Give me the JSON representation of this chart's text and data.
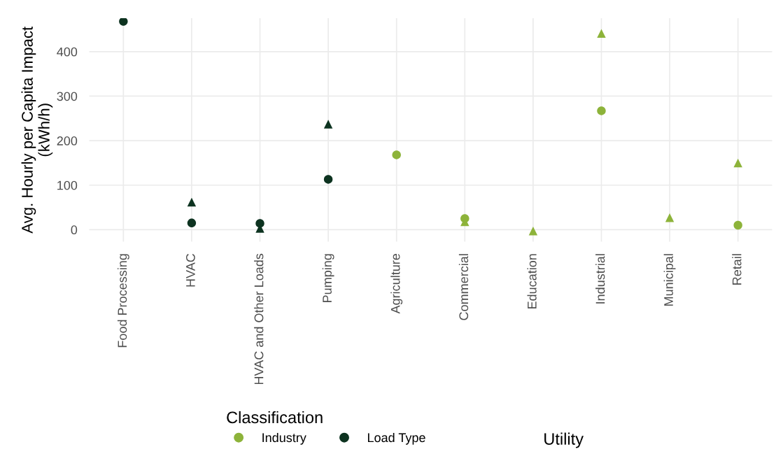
{
  "chart_data": {
    "type": "scatter",
    "ylabel": "Avg. Hourly per Capita Impact\n(kWh/h)",
    "categories": [
      "Food Processing",
      "HVAC",
      "HVAC and Other Loads",
      "Pumping",
      "Agriculture",
      "Commercial",
      "Education",
      "Industrial",
      "Municipal",
      "Retail"
    ],
    "series": [
      {
        "name": "Industry",
        "color": "#8db33a",
        "marker": "circle",
        "values": [
          null,
          null,
          null,
          null,
          168,
          25,
          null,
          267,
          null,
          10
        ]
      },
      {
        "name": "Load Type",
        "color": "#0d3320",
        "marker": "circle",
        "values": [
          468,
          15,
          14,
          113,
          null,
          null,
          null,
          null,
          null,
          null
        ]
      },
      {
        "color": "#8db33a",
        "marker": "triangle",
        "values": [
          null,
          null,
          null,
          null,
          null,
          18,
          -3,
          441,
          27,
          150
        ]
      },
      {
        "color": "#0d3320",
        "marker": "triangle",
        "values": [
          null,
          62,
          3,
          237,
          null,
          null,
          null,
          null,
          null,
          null
        ]
      }
    ],
    "ylim": [
      -27,
      475
    ],
    "yticks": [
      0,
      100,
      200,
      300,
      400
    ],
    "grid": true,
    "legend": "bottom",
    "legend_title": "Classification",
    "annotations": [
      "Utility"
    ]
  }
}
